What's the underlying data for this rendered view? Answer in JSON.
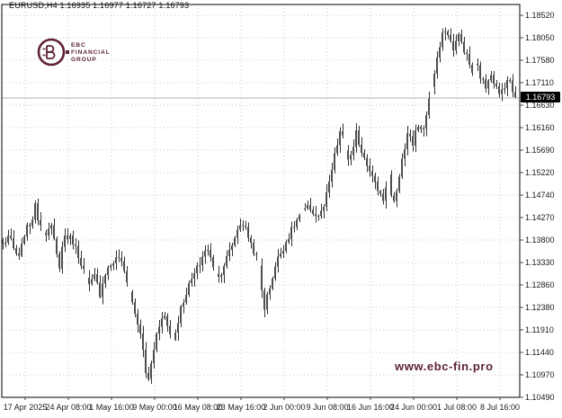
{
  "header": {
    "title": "EURUSD,H4 1.16935 1.16977 1.16727 1.16793"
  },
  "branding": {
    "logo_lines": [
      "EBC",
      "FINANCIAL",
      "GROUP"
    ],
    "brand_color": "#5e2238",
    "watermark": "www.ebc-fin.pro"
  },
  "chart_data": {
    "type": "candlestick",
    "symbol": "EURUSD",
    "timeframe": "H4",
    "title": "EURUSD,H4 1.16935 1.16977 1.16727 1.16793",
    "current_ohlc": {
      "open": "1.16935",
      "high": "1.16977",
      "low": "1.16727",
      "close": "1.16793"
    },
    "bid_label": "1.16793",
    "bid_value": 1.16793,
    "y_axis": {
      "top_value": 1.1852,
      "bottom_value": 1.1049,
      "labels": [
        "1.18520",
        "1.18050",
        "1.17580",
        "1.17110",
        "1.16630",
        "1.16160",
        "1.15690",
        "1.15220",
        "1.14740",
        "1.14270",
        "1.13800",
        "1.13330",
        "1.12860",
        "1.12380",
        "1.11910",
        "1.11440",
        "1.10970",
        "1.10490"
      ]
    },
    "x_axis": {
      "labels": [
        "17 Apr 2025",
        "24 Apr 08:00",
        "1 May 16:00",
        "9 May 00:00",
        "16 May 08:00",
        "23 May 16:00",
        "2 Jun 00:00",
        "9 Jun 08:00",
        "16 Jun 16:00",
        "24 Jun 00:00",
        "1 Jul 08:00",
        "8 Jul 16:00"
      ]
    },
    "grid": true,
    "colors": {
      "candle_body": "#4d4d4d",
      "candle_wick": "#333333",
      "grid": "#c9c9c9",
      "frame": "#000000",
      "bid_line": "#b3b3b3",
      "price_tag_bg": "#000000",
      "price_tag_text": "#ffffff"
    },
    "price_path": [
      [
        0.002,
        1.137
      ],
      [
        0.011,
        1.139
      ],
      [
        0.021,
        1.136
      ],
      [
        0.032,
        1.134
      ],
      [
        0.042,
        1.1395
      ],
      [
        0.056,
        1.142
      ],
      [
        0.063,
        1.145
      ],
      [
        0.07,
        1.142
      ],
      [
        0.082,
        1.1395
      ],
      [
        0.095,
        1.1405
      ],
      [
        0.109,
        1.132
      ],
      [
        0.119,
        1.139
      ],
      [
        0.135,
        1.138
      ],
      [
        0.153,
        1.133
      ],
      [
        0.167,
        1.128
      ],
      [
        0.179,
        1.1305
      ],
      [
        0.188,
        1.1265
      ],
      [
        0.198,
        1.131
      ],
      [
        0.211,
        1.133
      ],
      [
        0.225,
        1.1345
      ],
      [
        0.24,
        1.13
      ],
      [
        0.253,
        1.124
      ],
      [
        0.263,
        1.12
      ],
      [
        0.272,
        1.115
      ],
      [
        0.281,
        1.1072
      ],
      [
        0.288,
        1.112
      ],
      [
        0.298,
        1.118
      ],
      [
        0.311,
        1.123
      ],
      [
        0.323,
        1.1185
      ],
      [
        0.332,
        1.117
      ],
      [
        0.344,
        1.123
      ],
      [
        0.356,
        1.127
      ],
      [
        0.368,
        1.13
      ],
      [
        0.382,
        1.133
      ],
      [
        0.395,
        1.1365
      ],
      [
        0.407,
        1.133
      ],
      [
        0.419,
        1.13
      ],
      [
        0.43,
        1.133
      ],
      [
        0.442,
        1.136
      ],
      [
        0.453,
        1.1395
      ],
      [
        0.463,
        1.142
      ],
      [
        0.474,
        1.1395
      ],
      [
        0.486,
        1.136
      ],
      [
        0.496,
        1.1335
      ],
      [
        0.507,
        1.1235
      ],
      [
        0.518,
        1.128
      ],
      [
        0.53,
        1.133
      ],
      [
        0.542,
        1.136
      ],
      [
        0.556,
        1.139
      ],
      [
        0.57,
        1.142
      ],
      [
        0.582,
        1.144
      ],
      [
        0.596,
        1.1448
      ],
      [
        0.609,
        1.1428
      ],
      [
        0.621,
        1.144
      ],
      [
        0.632,
        1.149
      ],
      [
        0.642,
        1.1545
      ],
      [
        0.651,
        1.159
      ],
      [
        0.656,
        1.1615
      ],
      [
        0.663,
        1.1575
      ],
      [
        0.672,
        1.1545
      ],
      [
        0.681,
        1.157
      ],
      [
        0.686,
        1.1605
      ],
      [
        0.695,
        1.157
      ],
      [
        0.704,
        1.155
      ],
      [
        0.712,
        1.153
      ],
      [
        0.721,
        1.15
      ],
      [
        0.732,
        1.1478
      ],
      [
        0.74,
        1.1462
      ],
      [
        0.747,
        1.153
      ],
      [
        0.754,
        1.147
      ],
      [
        0.761,
        1.145
      ],
      [
        0.77,
        1.152
      ],
      [
        0.779,
        1.1572
      ],
      [
        0.788,
        1.161
      ],
      [
        0.796,
        1.158
      ],
      [
        0.805,
        1.1628
      ],
      [
        0.814,
        1.16
      ],
      [
        0.823,
        1.1652
      ],
      [
        0.832,
        1.17
      ],
      [
        0.84,
        1.174
      ],
      [
        0.849,
        1.179
      ],
      [
        0.858,
        1.1827
      ],
      [
        0.867,
        1.18
      ],
      [
        0.875,
        1.1782
      ],
      [
        0.884,
        1.181
      ],
      [
        0.893,
        1.1788
      ],
      [
        0.902,
        1.176
      ],
      [
        0.911,
        1.1732
      ],
      [
        0.919,
        1.1752
      ],
      [
        0.928,
        1.172
      ],
      [
        0.937,
        1.17
      ],
      [
        0.946,
        1.1736
      ],
      [
        0.954,
        1.1712
      ],
      [
        0.963,
        1.1682
      ],
      [
        0.972,
        1.1702
      ],
      [
        0.981,
        1.1722
      ],
      [
        0.989,
        1.1692
      ],
      [
        1.0,
        1.16793
      ]
    ]
  }
}
